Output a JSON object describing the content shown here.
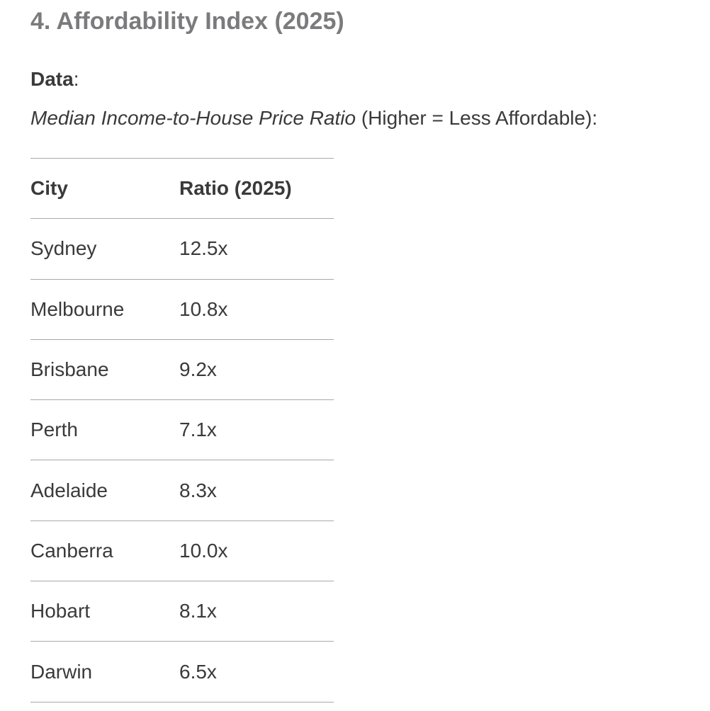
{
  "section": {
    "title": "4. Affordability Index (2025)",
    "data_label": "Data",
    "data_suffix": ":",
    "description_italic": "Median Income-to-House Price Ratio",
    "description_rest": " (Higher = Less Affordable):"
  },
  "table": {
    "headers": [
      "City",
      "Ratio (2025)"
    ],
    "rows": [
      {
        "city": "Sydney",
        "ratio": "12.5x"
      },
      {
        "city": "Melbourne",
        "ratio": "10.8x"
      },
      {
        "city": "Brisbane",
        "ratio": "9.2x"
      },
      {
        "city": "Perth",
        "ratio": "7.1x"
      },
      {
        "city": "Adelaide",
        "ratio": "8.3x"
      },
      {
        "city": "Canberra",
        "ratio": "10.0x"
      },
      {
        "city": "Hobart",
        "ratio": "8.1x"
      },
      {
        "city": "Darwin",
        "ratio": "6.5x"
      }
    ]
  }
}
